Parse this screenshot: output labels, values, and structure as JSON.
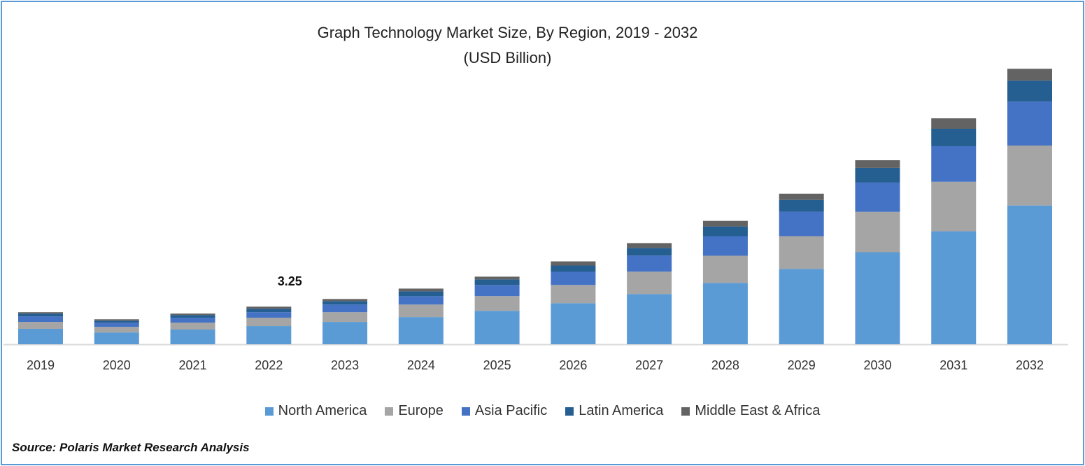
{
  "chart_data": {
    "type": "bar",
    "stacked": true,
    "title": "Graph Technology Market Size, By Region, 2019 - 2032",
    "subtitle": "(USD Billion)",
    "categories": [
      "2019",
      "2020",
      "2021",
      "2022",
      "2023",
      "2024",
      "2025",
      "2026",
      "2027",
      "2028",
      "2029",
      "2030",
      "2031",
      "2032"
    ],
    "series": [
      {
        "name": "North America",
        "color": "#5b9bd5",
        "values": [
          1.33,
          1.02,
          1.27,
          1.57,
          1.93,
          2.35,
          2.89,
          3.55,
          4.34,
          5.3,
          6.51,
          7.95,
          9.76,
          11.99
        ]
      },
      {
        "name": "Europe",
        "color": "#a5a5a5",
        "values": [
          0.6,
          0.48,
          0.6,
          0.72,
          0.84,
          1.08,
          1.27,
          1.57,
          1.93,
          2.35,
          2.83,
          3.49,
          4.28,
          5.18
        ]
      },
      {
        "name": "Asia Pacific",
        "color": "#4472c4",
        "values": [
          0.48,
          0.36,
          0.42,
          0.48,
          0.66,
          0.72,
          0.96,
          1.14,
          1.39,
          1.69,
          2.11,
          2.53,
          3.07,
          3.8
        ]
      },
      {
        "name": "Latin America",
        "color": "#255e91",
        "values": [
          0.24,
          0.18,
          0.24,
          0.3,
          0.3,
          0.42,
          0.48,
          0.54,
          0.66,
          0.84,
          1.02,
          1.27,
          1.51,
          1.81
        ]
      },
      {
        "name": "Middle East & Africa",
        "color": "#636363",
        "values": [
          0.12,
          0.12,
          0.12,
          0.18,
          0.18,
          0.24,
          0.24,
          0.36,
          0.42,
          0.48,
          0.54,
          0.66,
          0.9,
          1.02
        ]
      }
    ],
    "annotations": [
      {
        "category": "2022",
        "text": "3.25"
      }
    ],
    "ylim": [
      0,
      24
    ],
    "y_axis_visible": false,
    "grid": false,
    "legend_position": "bottom"
  },
  "source": "Source: Polaris Market Research Analysis"
}
